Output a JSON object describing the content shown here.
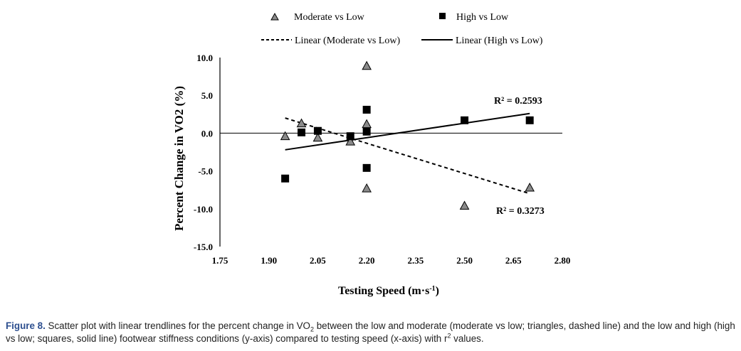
{
  "chart_data": {
    "type": "scatter",
    "xlabel_main": "Testing Speed (m·s",
    "xlabel_sup": "-1",
    "xlabel_end": ")",
    "ylabel": "Percent Change in VO2 (%)",
    "xlim": [
      1.75,
      2.8
    ],
    "ylim": [
      -15.0,
      10.0
    ],
    "x_ticks": [
      "1.75",
      "1.90",
      "2.05",
      "2.20",
      "2.35",
      "2.50",
      "2.65",
      "2.80"
    ],
    "y_ticks": [
      "10.0",
      "5.0",
      "0.0",
      "-5.0",
      "-10.0",
      "-15.0"
    ],
    "legend": {
      "moderate": "Moderate vs Low",
      "high": "High vs Low",
      "linear_moderate": "Linear (Moderate vs Low)",
      "linear_high": "Linear (High vs Low)"
    },
    "series": [
      {
        "name": "Moderate vs Low",
        "marker": "triangle",
        "color": "#8a8a8a",
        "points": [
          [
            1.95,
            -0.4
          ],
          [
            2.0,
            1.3
          ],
          [
            2.05,
            -0.6
          ],
          [
            2.15,
            -1.1
          ],
          [
            2.2,
            8.9
          ],
          [
            2.2,
            1.2
          ],
          [
            2.2,
            -7.3
          ],
          [
            2.5,
            -9.6
          ],
          [
            2.7,
            -7.2
          ]
        ],
        "trendline": {
          "style": "dashed",
          "start": [
            1.95,
            2.0
          ],
          "end": [
            2.7,
            -8.0
          ],
          "r2_label": "R² = 0.3273"
        }
      },
      {
        "name": "High vs Low",
        "marker": "square",
        "color": "#000000",
        "points": [
          [
            1.95,
            -6.0
          ],
          [
            2.0,
            0.1
          ],
          [
            2.05,
            0.3
          ],
          [
            2.15,
            -0.4
          ],
          [
            2.2,
            3.1
          ],
          [
            2.2,
            0.2
          ],
          [
            2.2,
            -4.6
          ],
          [
            2.5,
            1.7
          ],
          [
            2.7,
            1.7
          ]
        ],
        "trendline": {
          "style": "solid",
          "start": [
            1.95,
            -2.2
          ],
          "end": [
            2.7,
            2.6
          ],
          "r2_label": "R² = 0.2593"
        }
      }
    ]
  },
  "caption": {
    "label": "Figure 8.",
    "t1": " Scatter plot with linear trendlines for the percent change in VO",
    "sub": "2",
    "t2": " between the low and moderate (moderate vs low; triangles, dashed line) and the low and high (high vs low; squares, solid line) footwear stiffness conditions (y-axis) compared to testing speed (x-axis) with r",
    "sup": "2",
    "t3": " values."
  }
}
